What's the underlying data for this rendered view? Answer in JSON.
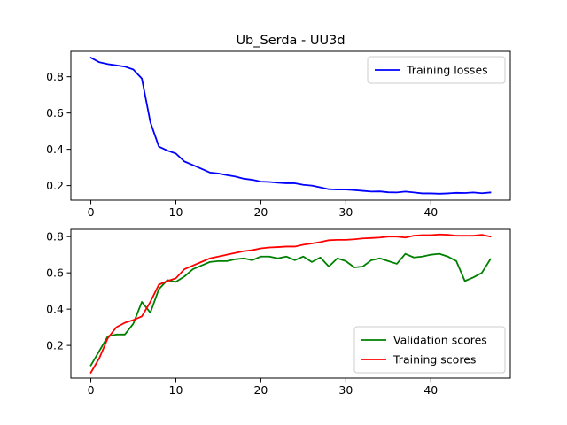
{
  "figure": {
    "title": "Ub_Serda - UU3d"
  },
  "chart_data": [
    {
      "type": "line",
      "title": "Ub_Serda - UU3d",
      "xlabel": "",
      "ylabel": "",
      "xlim": [
        -2.35,
        49.35
      ],
      "ylim": [
        0.12,
        0.94
      ],
      "xticks": [
        0,
        10,
        20,
        30,
        40
      ],
      "yticks": [
        0.2,
        0.4,
        0.6,
        0.8
      ],
      "xtick_labels": [
        "0",
        "10",
        "20",
        "30",
        "40"
      ],
      "ytick_labels": [
        "0.2",
        "0.4",
        "0.6",
        "0.8"
      ],
      "legend_position": "top-right",
      "series": [
        {
          "name": "Training losses",
          "color": "#0000ff",
          "x": [
            0,
            1,
            2,
            3,
            4,
            5,
            6,
            7,
            8,
            9,
            10,
            11,
            12,
            13,
            14,
            15,
            16,
            17,
            18,
            19,
            20,
            21,
            22,
            23,
            24,
            25,
            26,
            27,
            28,
            29,
            30,
            31,
            32,
            33,
            34,
            35,
            36,
            37,
            38,
            39,
            40,
            41,
            42,
            43,
            44,
            45,
            46,
            47
          ],
          "values": [
            0.905,
            0.88,
            0.87,
            0.863,
            0.856,
            0.84,
            0.79,
            0.55,
            0.415,
            0.393,
            0.377,
            0.333,
            0.313,
            0.293,
            0.272,
            0.267,
            0.258,
            0.25,
            0.238,
            0.232,
            0.222,
            0.22,
            0.216,
            0.213,
            0.213,
            0.204,
            0.2,
            0.19,
            0.18,
            0.178,
            0.178,
            0.175,
            0.171,
            0.167,
            0.168,
            0.163,
            0.162,
            0.167,
            0.162,
            0.157,
            0.157,
            0.155,
            0.157,
            0.16,
            0.159,
            0.162,
            0.158,
            0.162
          ]
        }
      ]
    },
    {
      "type": "line",
      "title": "",
      "xlabel": "",
      "ylabel": "",
      "xlim": [
        -2.35,
        49.35
      ],
      "ylim": [
        0.02,
        0.84
      ],
      "xticks": [
        0,
        10,
        20,
        30,
        40
      ],
      "yticks": [
        0.2,
        0.4,
        0.6,
        0.8
      ],
      "xtick_labels": [
        "0",
        "10",
        "20",
        "30",
        "40"
      ],
      "ytick_labels": [
        "0.2",
        "0.4",
        "0.6",
        "0.8"
      ],
      "legend_position": "bottom-right",
      "series": [
        {
          "name": "Validation scores",
          "color": "#008000",
          "x": [
            0,
            1,
            2,
            3,
            4,
            5,
            6,
            7,
            8,
            9,
            10,
            11,
            12,
            13,
            14,
            15,
            16,
            17,
            18,
            19,
            20,
            21,
            22,
            23,
            24,
            25,
            26,
            27,
            28,
            29,
            30,
            31,
            32,
            33,
            34,
            35,
            36,
            37,
            38,
            39,
            40,
            41,
            42,
            43,
            44,
            45,
            46,
            47
          ],
          "values": [
            0.09,
            0.17,
            0.25,
            0.26,
            0.26,
            0.32,
            0.44,
            0.38,
            0.51,
            0.56,
            0.55,
            0.58,
            0.62,
            0.64,
            0.66,
            0.665,
            0.665,
            0.675,
            0.68,
            0.67,
            0.69,
            0.69,
            0.68,
            0.69,
            0.67,
            0.69,
            0.66,
            0.685,
            0.635,
            0.68,
            0.665,
            0.63,
            0.635,
            0.67,
            0.68,
            0.665,
            0.65,
            0.705,
            0.685,
            0.69,
            0.7,
            0.705,
            0.69,
            0.665,
            0.555,
            0.575,
            0.6,
            0.675
          ]
        },
        {
          "name": "Training scores",
          "color": "#ff0000",
          "x": [
            0,
            1,
            2,
            3,
            4,
            5,
            6,
            7,
            8,
            9,
            10,
            11,
            12,
            13,
            14,
            15,
            16,
            17,
            18,
            19,
            20,
            21,
            22,
            23,
            24,
            25,
            26,
            27,
            28,
            29,
            30,
            31,
            32,
            33,
            34,
            35,
            36,
            37,
            38,
            39,
            40,
            41,
            42,
            43,
            44,
            45,
            46,
            47
          ],
          "values": [
            0.05,
            0.13,
            0.24,
            0.3,
            0.325,
            0.34,
            0.36,
            0.44,
            0.535,
            0.555,
            0.57,
            0.62,
            0.64,
            0.66,
            0.68,
            0.69,
            0.7,
            0.71,
            0.72,
            0.725,
            0.735,
            0.74,
            0.742,
            0.745,
            0.745,
            0.755,
            0.762,
            0.77,
            0.78,
            0.782,
            0.782,
            0.785,
            0.79,
            0.792,
            0.795,
            0.8,
            0.8,
            0.795,
            0.805,
            0.808,
            0.808,
            0.812,
            0.81,
            0.805,
            0.805,
            0.805,
            0.81,
            0.8
          ]
        }
      ]
    }
  ]
}
